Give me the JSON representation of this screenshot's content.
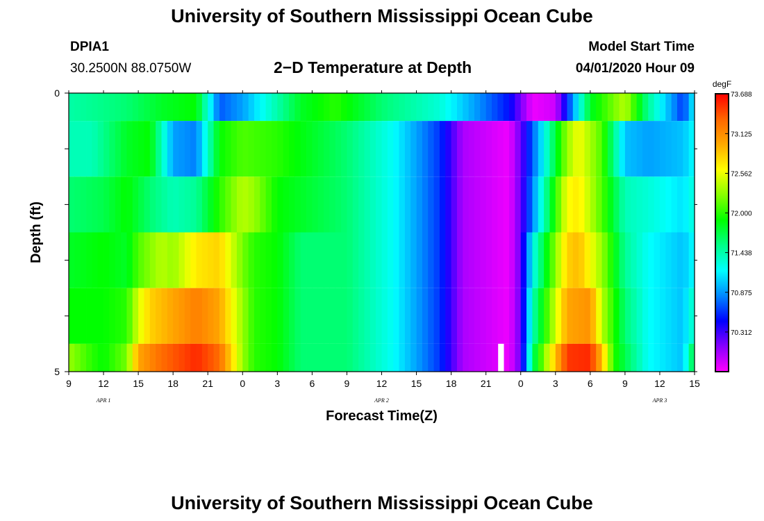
{
  "header": {
    "title": "University of Southern Mississippi Ocean Cube",
    "station_id": "DPIA1",
    "station_coords": "30.2500N 88.0750W",
    "model_label": "Model Start Time",
    "model_start": "04/01/2020 Hour 09"
  },
  "footer": {
    "title": "University of Southern Mississippi Ocean Cube"
  },
  "colors": {
    "scale": [
      "#ff00ff",
      "#8800ff",
      "#0000ff",
      "#0088ff",
      "#00ffff",
      "#00ff88",
      "#00ff00",
      "#88ff00",
      "#ffff00",
      "#ffaa00",
      "#ff6600",
      "#ff0000"
    ]
  },
  "chart_data": {
    "type": "heatmap",
    "title": "2−D Temperature at Depth",
    "xlabel": "Forecast Time(Z)",
    "ylabel": "Depth (ft)",
    "x_tick_labels": [
      "9",
      "12",
      "15",
      "18",
      "21",
      "0",
      "3",
      "6",
      "9",
      "12",
      "15",
      "18",
      "21",
      "0",
      "3",
      "6",
      "9",
      "12",
      "15"
    ],
    "date_labels": [
      "APR 1",
      "APR 2",
      "APR 3"
    ],
    "y_tick_labels": [
      "0",
      "5"
    ],
    "ylim": [
      0,
      5
    ],
    "x_range_hours": [
      0,
      54
    ],
    "depth_levels": 5,
    "colorbar": {
      "unit": "degF",
      "min": 69.75,
      "max": 73.69,
      "tick_labels": [
        "73.688",
        "73.125",
        "72.562",
        "72.000",
        "71.438",
        "70.875",
        "70.312"
      ],
      "tick_values": [
        73.688,
        73.125,
        72.562,
        72.0,
        71.438,
        70.875,
        70.312
      ]
    },
    "surface_row": {
      "depth_range": [
        0,
        0.5
      ],
      "hours": [
        0,
        5,
        8,
        11,
        13,
        15,
        20,
        23,
        27,
        32,
        38,
        40,
        42,
        44,
        45,
        48,
        50,
        53,
        54
      ],
      "temps": [
        71.45,
        71.6,
        71.8,
        71.9,
        70.7,
        70.9,
        71.8,
        72.0,
        71.6,
        71.3,
        70.5,
        69.8,
        69.9,
        71.2,
        71.8,
        72.4,
        71.5,
        70.6,
        71.2
      ]
    },
    "rows": [
      {
        "depth_range": [
          0.5,
          1.5
        ],
        "hours": [
          0,
          2,
          5,
          7,
          9,
          11,
          13,
          15,
          18,
          24,
          28,
          32,
          34,
          38,
          39,
          41,
          43,
          44,
          46,
          48,
          50,
          53,
          54
        ],
        "temps": [
          71.4,
          71.4,
          71.8,
          71.9,
          70.9,
          70.8,
          71.9,
          72.1,
          72.0,
          71.6,
          71.2,
          70.6,
          70.0,
          69.8,
          70.2,
          71.2,
          72.3,
          72.6,
          72.1,
          71.0,
          70.9,
          71.0,
          71.2
        ]
      },
      {
        "depth_range": [
          1.5,
          2.5
        ],
        "hours": [
          0,
          3,
          5,
          7,
          9,
          11,
          13,
          15,
          16,
          18,
          20,
          24,
          28,
          32,
          34,
          38,
          39,
          41,
          43,
          44,
          46,
          48,
          50,
          53,
          54
        ],
        "temps": [
          71.6,
          71.7,
          71.9,
          71.6,
          71.4,
          71.5,
          72.0,
          72.4,
          72.3,
          71.9,
          71.8,
          71.6,
          71.2,
          70.6,
          70.0,
          69.8,
          70.2,
          71.4,
          72.6,
          72.7,
          72.1,
          71.4,
          71.3,
          71.1,
          71.3
        ]
      },
      {
        "depth_range": [
          2.5,
          3.5
        ],
        "hours": [
          0,
          3,
          5,
          6,
          8,
          9,
          11,
          13,
          15,
          16,
          18,
          20,
          24,
          28,
          32,
          34,
          38,
          39,
          40,
          43,
          44,
          46,
          48,
          50,
          53,
          54
        ],
        "temps": [
          71.8,
          71.9,
          71.8,
          72.1,
          72.4,
          72.3,
          72.7,
          72.8,
          72.2,
          72.0,
          71.9,
          71.6,
          71.6,
          71.2,
          70.6,
          70.0,
          69.8,
          70.2,
          71.2,
          72.8,
          72.9,
          72.3,
          71.5,
          71.2,
          71.0,
          71.2
        ]
      },
      {
        "depth_range": [
          3.5,
          4.5
        ],
        "hours": [
          0,
          3,
          5,
          6,
          7,
          8,
          11,
          13,
          15,
          16,
          18,
          20,
          24,
          28,
          32,
          34,
          38,
          39,
          40,
          43,
          45,
          46,
          48,
          50,
          53,
          54
        ],
        "temps": [
          71.9,
          71.9,
          72.0,
          72.5,
          72.8,
          72.9,
          73.2,
          73.0,
          72.3,
          72.0,
          71.9,
          71.6,
          71.6,
          71.2,
          70.6,
          70.0,
          69.8,
          70.2,
          71.4,
          73.0,
          73.1,
          72.4,
          71.6,
          71.2,
          71.0,
          71.4
        ]
      },
      {
        "depth_range": [
          4.5,
          5.0
        ],
        "hours": [
          0,
          2,
          3,
          5,
          6,
          8,
          11,
          13,
          15,
          16,
          18,
          20,
          24,
          28,
          32,
          34,
          38,
          39,
          40,
          43,
          45,
          46,
          47,
          48,
          50,
          53,
          54
        ],
        "temps": [
          72.3,
          72.0,
          71.9,
          72.2,
          73.0,
          73.3,
          73.55,
          73.3,
          72.3,
          72.0,
          71.9,
          71.6,
          71.6,
          71.2,
          70.6,
          70.0,
          69.8,
          70.2,
          71.6,
          73.5,
          73.55,
          72.9,
          72.0,
          71.7,
          71.2,
          71.0,
          71.8
        ]
      }
    ],
    "missing_cell": {
      "hour": 37.3,
      "depth": 4.75
    }
  }
}
